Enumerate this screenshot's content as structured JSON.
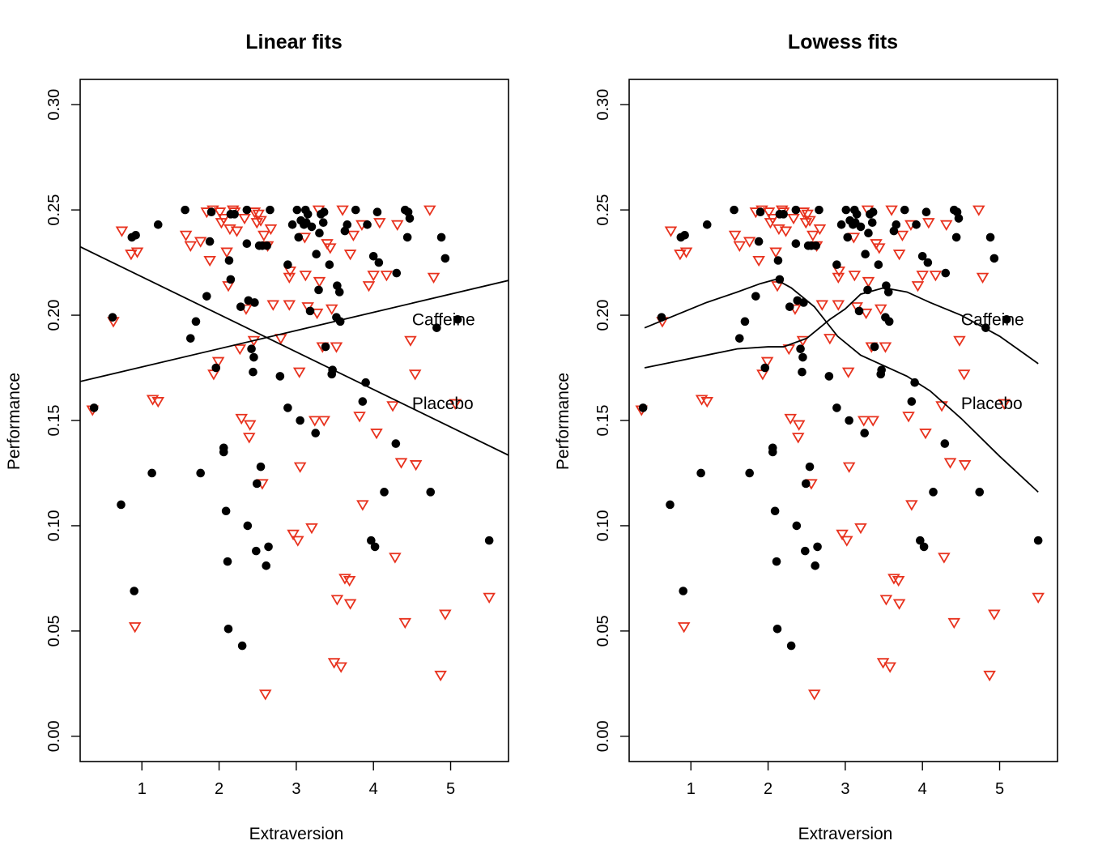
{
  "colors": {
    "caffeine_points": "#000000",
    "placebo_points": "#e8321e",
    "lines": "#000000",
    "background": "#ffffff"
  },
  "chart_data": [
    {
      "type": "scatter",
      "title": "Linear fits",
      "xlabel": "Extraversion",
      "ylabel": "Performance",
      "xlim": [
        0.2,
        5.75
      ],
      "ylim": [
        -0.012,
        0.312
      ],
      "x_ticks": [
        1,
        2,
        3,
        4,
        5
      ],
      "x_tick_labels": [
        "1",
        "2",
        "3",
        "4",
        "5"
      ],
      "y_ticks": [
        0.0,
        0.05,
        0.1,
        0.15,
        0.2,
        0.25,
        0.3
      ],
      "y_tick_labels": [
        "0.00",
        "0.05",
        "0.10",
        "0.15",
        "0.20",
        "0.25",
        "0.30"
      ],
      "grid": false,
      "marker_series": [
        "Caffeine",
        "Placebo"
      ],
      "line_kind": "linear",
      "fits": [
        {
          "label": "Caffeine",
          "label_at": [
            4.5,
            0.198
          ],
          "x": [
            0.2,
            5.75
          ],
          "y": [
            0.1685,
            0.2165
          ]
        },
        {
          "label": "Placebo",
          "label_at": [
            4.5,
            0.158
          ],
          "x": [
            0.2,
            5.75
          ],
          "y": [
            0.2325,
            0.1335
          ]
        }
      ]
    },
    {
      "type": "scatter",
      "title": "Lowess fits",
      "xlabel": "Extraversion",
      "ylabel": "Performance",
      "xlim": [
        0.2,
        5.75
      ],
      "ylim": [
        -0.012,
        0.312
      ],
      "x_ticks": [
        1,
        2,
        3,
        4,
        5
      ],
      "x_tick_labels": [
        "1",
        "2",
        "3",
        "4",
        "5"
      ],
      "y_ticks": [
        0.0,
        0.05,
        0.1,
        0.15,
        0.2,
        0.25,
        0.3
      ],
      "y_tick_labels": [
        "0.00",
        "0.05",
        "0.10",
        "0.15",
        "0.20",
        "0.25",
        "0.30"
      ],
      "grid": false,
      "marker_series": [
        "Caffeine",
        "Placebo"
      ],
      "line_kind": "lowess",
      "fits": [
        {
          "label": "Caffeine",
          "label_at": [
            4.5,
            0.198
          ],
          "x": [
            0.4,
            0.8,
            1.2,
            1.6,
            2.0,
            2.2,
            2.5,
            2.8,
            3.0,
            3.2,
            3.5,
            3.8,
            4.1,
            4.5,
            5.0,
            5.5
          ],
          "y": [
            0.175,
            0.178,
            0.181,
            0.184,
            0.185,
            0.185,
            0.189,
            0.198,
            0.203,
            0.21,
            0.213,
            0.211,
            0.206,
            0.2,
            0.19,
            0.177
          ]
        },
        {
          "label": "Placebo",
          "label_at": [
            4.5,
            0.158
          ],
          "x": [
            0.4,
            0.8,
            1.2,
            1.6,
            1.9,
            2.1,
            2.3,
            2.6,
            2.9,
            3.2,
            3.5,
            3.8,
            4.1,
            4.5,
            5.0,
            5.5
          ],
          "y": [
            0.194,
            0.2,
            0.206,
            0.211,
            0.215,
            0.217,
            0.213,
            0.204,
            0.19,
            0.181,
            0.176,
            0.171,
            0.164,
            0.151,
            0.133,
            0.116
          ]
        }
      ]
    }
  ],
  "shared_points": {
    "Caffeine": [
      [
        0.38,
        0.156
      ],
      [
        0.62,
        0.199
      ],
      [
        0.73,
        0.11
      ],
      [
        0.87,
        0.237
      ],
      [
        0.9,
        0.069
      ],
      [
        0.92,
        0.238
      ],
      [
        1.13,
        0.125
      ],
      [
        1.21,
        0.243
      ],
      [
        1.56,
        0.25
      ],
      [
        1.63,
        0.189
      ],
      [
        1.7,
        0.197
      ],
      [
        1.76,
        0.125
      ],
      [
        1.84,
        0.209
      ],
      [
        1.88,
        0.235
      ],
      [
        1.9,
        0.249
      ],
      [
        1.96,
        0.175
      ],
      [
        2.06,
        0.137
      ],
      [
        2.06,
        0.135
      ],
      [
        2.09,
        0.107
      ],
      [
        2.11,
        0.083
      ],
      [
        2.12,
        0.051
      ],
      [
        2.13,
        0.226
      ],
      [
        2.15,
        0.217
      ],
      [
        2.15,
        0.248
      ],
      [
        2.2,
        0.248
      ],
      [
        2.28,
        0.204
      ],
      [
        2.3,
        0.043
      ],
      [
        2.36,
        0.234
      ],
      [
        2.36,
        0.25
      ],
      [
        2.37,
        0.1
      ],
      [
        2.38,
        0.207
      ],
      [
        2.42,
        0.184
      ],
      [
        2.44,
        0.173
      ],
      [
        2.45,
        0.18
      ],
      [
        2.46,
        0.206
      ],
      [
        2.48,
        0.088
      ],
      [
        2.49,
        0.12
      ],
      [
        2.52,
        0.233
      ],
      [
        2.54,
        0.128
      ],
      [
        2.56,
        0.233
      ],
      [
        2.61,
        0.081
      ],
      [
        2.62,
        0.233
      ],
      [
        2.64,
        0.09
      ],
      [
        2.66,
        0.25
      ],
      [
        2.79,
        0.171
      ],
      [
        2.89,
        0.156
      ],
      [
        2.89,
        0.224
      ],
      [
        2.95,
        0.243
      ],
      [
        3.01,
        0.25
      ],
      [
        3.03,
        0.237
      ],
      [
        3.05,
        0.15
      ],
      [
        3.06,
        0.245
      ],
      [
        3.1,
        0.243
      ],
      [
        3.12,
        0.25
      ],
      [
        3.13,
        0.244
      ],
      [
        3.15,
        0.248
      ],
      [
        3.18,
        0.202
      ],
      [
        3.2,
        0.242
      ],
      [
        3.25,
        0.144
      ],
      [
        3.26,
        0.229
      ],
      [
        3.29,
        0.212
      ],
      [
        3.3,
        0.239
      ],
      [
        3.32,
        0.248
      ],
      [
        3.35,
        0.244
      ],
      [
        3.36,
        0.249
      ],
      [
        3.38,
        0.185
      ],
      [
        3.43,
        0.224
      ],
      [
        3.46,
        0.172
      ],
      [
        3.47,
        0.174
      ],
      [
        3.52,
        0.199
      ],
      [
        3.53,
        0.214
      ],
      [
        3.56,
        0.211
      ],
      [
        3.57,
        0.197
      ],
      [
        3.63,
        0.24
      ],
      [
        3.66,
        0.243
      ],
      [
        3.77,
        0.25
      ],
      [
        3.86,
        0.159
      ],
      [
        3.9,
        0.168
      ],
      [
        3.92,
        0.243
      ],
      [
        3.97,
        0.093
      ],
      [
        4.0,
        0.228
      ],
      [
        4.02,
        0.09
      ],
      [
        4.05,
        0.249
      ],
      [
        4.07,
        0.225
      ],
      [
        4.14,
        0.116
      ],
      [
        4.29,
        0.139
      ],
      [
        4.3,
        0.22
      ],
      [
        4.41,
        0.25
      ],
      [
        4.44,
        0.237
      ],
      [
        4.45,
        0.249
      ],
      [
        4.47,
        0.246
      ],
      [
        4.74,
        0.116
      ],
      [
        4.82,
        0.194
      ],
      [
        4.88,
        0.237
      ],
      [
        4.93,
        0.227
      ],
      [
        5.09,
        0.198
      ],
      [
        5.5,
        0.093
      ]
    ],
    "Placebo": [
      [
        0.36,
        0.155
      ],
      [
        0.63,
        0.197
      ],
      [
        0.74,
        0.24
      ],
      [
        0.86,
        0.229
      ],
      [
        0.91,
        0.052
      ],
      [
        0.94,
        0.23
      ],
      [
        1.14,
        0.16
      ],
      [
        1.21,
        0.159
      ],
      [
        1.57,
        0.238
      ],
      [
        1.63,
        0.233
      ],
      [
        1.76,
        0.235
      ],
      [
        1.84,
        0.249
      ],
      [
        1.88,
        0.226
      ],
      [
        1.92,
        0.25
      ],
      [
        1.93,
        0.172
      ],
      [
        1.99,
        0.178
      ],
      [
        2.03,
        0.244
      ],
      [
        2.06,
        0.246
      ],
      [
        2.1,
        0.23
      ],
      [
        2.12,
        0.214
      ],
      [
        2.14,
        0.241
      ],
      [
        2.18,
        0.25
      ],
      [
        2.2,
        0.249
      ],
      [
        2.23,
        0.24
      ],
      [
        2.27,
        0.184
      ],
      [
        2.29,
        0.151
      ],
      [
        2.33,
        0.246
      ],
      [
        2.35,
        0.203
      ],
      [
        2.39,
        0.142
      ],
      [
        2.4,
        0.148
      ],
      [
        2.45,
        0.188
      ],
      [
        2.46,
        0.249
      ],
      [
        2.49,
        0.244
      ],
      [
        2.51,
        0.248
      ],
      [
        2.54,
        0.245
      ],
      [
        2.56,
        0.12
      ],
      [
        2.58,
        0.238
      ],
      [
        2.6,
        0.02
      ],
      [
        2.63,
        0.233
      ],
      [
        2.67,
        0.241
      ],
      [
        2.8,
        0.189
      ],
      [
        2.91,
        0.218
      ],
      [
        2.91,
        0.205
      ],
      [
        2.96,
        0.096
      ],
      [
        3.02,
        0.093
      ],
      [
        3.04,
        0.173
      ],
      [
        3.05,
        0.128
      ],
      [
        3.11,
        0.237
      ],
      [
        3.12,
        0.219
      ],
      [
        3.15,
        0.204
      ],
      [
        3.2,
        0.099
      ],
      [
        3.24,
        0.15
      ],
      [
        3.27,
        0.201
      ],
      [
        3.29,
        0.25
      ],
      [
        3.3,
        0.216
      ],
      [
        3.34,
        0.185
      ],
      [
        3.36,
        0.15
      ],
      [
        3.4,
        0.234
      ],
      [
        3.46,
        0.203
      ],
      [
        3.49,
        0.035
      ],
      [
        3.52,
        0.185
      ],
      [
        3.53,
        0.065
      ],
      [
        3.58,
        0.033
      ],
      [
        3.63,
        0.075
      ],
      [
        3.69,
        0.074
      ],
      [
        3.7,
        0.063
      ],
      [
        3.74,
        0.238
      ],
      [
        3.82,
        0.152
      ],
      [
        3.86,
        0.11
      ],
      [
        3.94,
        0.214
      ],
      [
        4.04,
        0.144
      ],
      [
        4.08,
        0.244
      ],
      [
        4.17,
        0.219
      ],
      [
        4.25,
        0.157
      ],
      [
        4.28,
        0.085
      ],
      [
        4.31,
        0.243
      ],
      [
        4.36,
        0.13
      ],
      [
        4.41,
        0.054
      ],
      [
        4.48,
        0.188
      ],
      [
        4.54,
        0.172
      ],
      [
        4.55,
        0.129
      ],
      [
        4.73,
        0.25
      ],
      [
        4.78,
        0.218
      ],
      [
        4.87,
        0.029
      ],
      [
        4.93,
        0.058
      ],
      [
        5.06,
        0.158
      ],
      [
        5.5,
        0.066
      ],
      [
        3.6,
        0.25
      ],
      [
        3.85,
        0.243
      ],
      [
        4.0,
        0.219
      ],
      [
        3.44,
        0.232
      ],
      [
        2.01,
        0.249
      ],
      [
        2.7,
        0.205
      ],
      [
        2.92,
        0.221
      ],
      [
        3.7,
        0.229
      ]
    ]
  }
}
